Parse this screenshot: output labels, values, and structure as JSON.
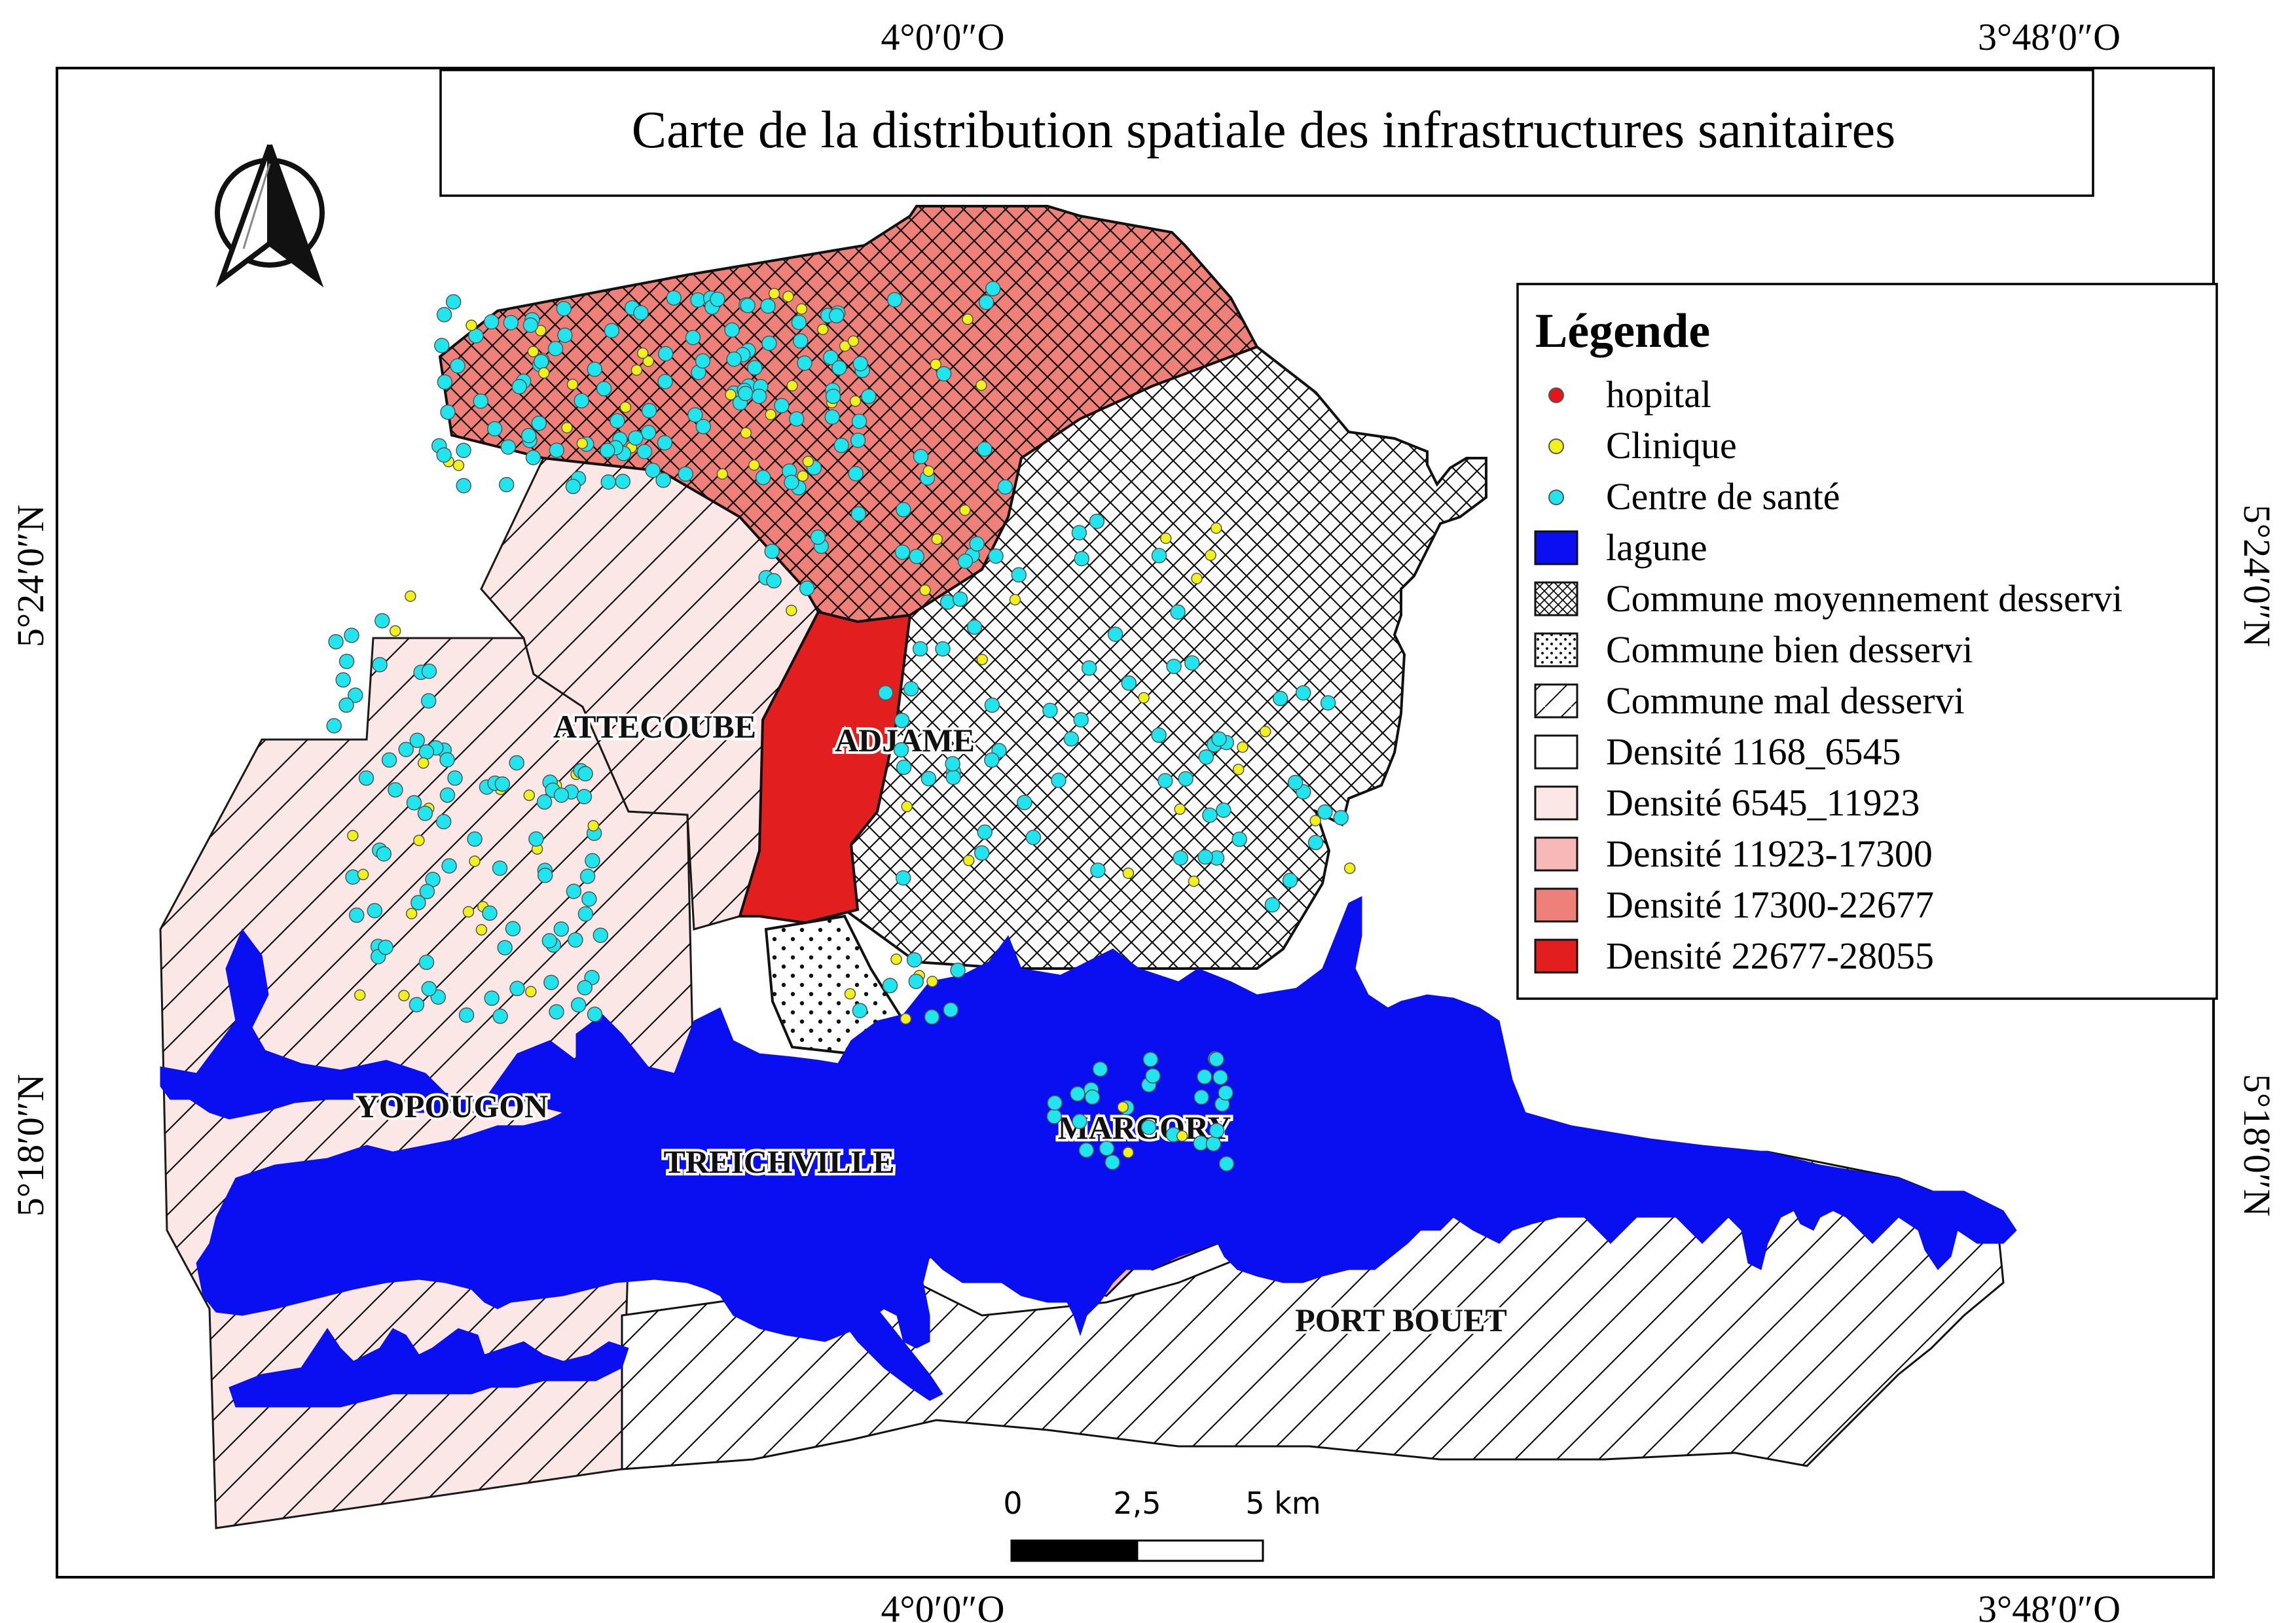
{
  "title": "Carte de la distribution spatiale des infrastructures sanitaires",
  "graticule": {
    "top": [
      "4°0′0″O",
      "3°48′0″O"
    ],
    "bottom": [
      "4°0′0″O",
      "3°48′0″O"
    ],
    "left": [
      "5°24′0″N",
      "5°18′0″N"
    ],
    "right": [
      "5°24′0″N",
      "5°18′0″N"
    ]
  },
  "legend": {
    "heading": "Légende",
    "items": [
      {
        "label": "hopital",
        "symbol": "dot",
        "color": "#e4161b"
      },
      {
        "label": "Clinique",
        "symbol": "dot",
        "color": "#f2f21a"
      },
      {
        "label": "Centre de santé",
        "symbol": "dot",
        "color": "#1fe6ee"
      },
      {
        "label": "lagune",
        "symbol": "fill",
        "color": "#0a0ff2"
      },
      {
        "label": "Commune moyennement desservi",
        "symbol": "crosshatch",
        "color": "#000000"
      },
      {
        "label": "Commune bien desservi",
        "symbol": "dots",
        "color": "#000000"
      },
      {
        "label": "Commune mal desservi",
        "symbol": "diagonal",
        "color": "#000000"
      },
      {
        "label": "Densité 1168_6545",
        "symbol": "fill",
        "color": "#ffffff"
      },
      {
        "label": "Densité 6545_11923",
        "symbol": "fill",
        "color": "#fbe8e6"
      },
      {
        "label": "Densité 11923-17300",
        "symbol": "fill",
        "color": "#f7b9b7"
      },
      {
        "label": "Densité 17300-22677",
        "symbol": "fill",
        "color": "#ef7f79"
      },
      {
        "label": "Densité 22677-28055",
        "symbol": "fill",
        "color": "#e31e1e"
      }
    ]
  },
  "communes": [
    "ATTECOUBE",
    "ADJAME",
    "YOPOUGON",
    "TREICHVILLE",
    "MARCORY",
    "PORT BOUET"
  ],
  "scalebar": {
    "labels": [
      "0",
      "2,5",
      "5 km"
    ]
  },
  "colors": {
    "frame": "#000000",
    "lagoon": "#0a0ff2",
    "outline": "#1a1a1a"
  }
}
